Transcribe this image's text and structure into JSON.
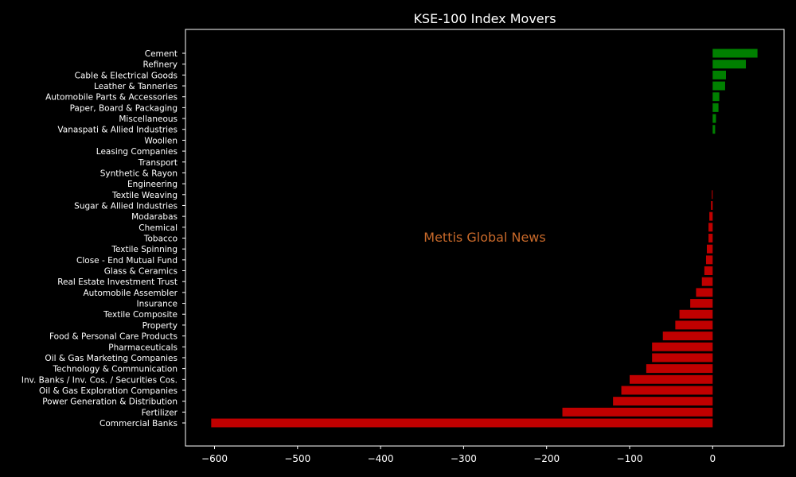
{
  "chart_data": {
    "type": "bar",
    "orientation": "horizontal",
    "title": "KSE-100 Index Movers",
    "xlabel": "",
    "ylabel": "",
    "xlim": [
      -635,
      86
    ],
    "xticks": [
      -600,
      -500,
      -400,
      -300,
      -200,
      -100,
      0
    ],
    "grid": false,
    "watermark": "Mettis Global News",
    "colors": {
      "positive": "#008000",
      "negative": "#c00000",
      "background": "#000000",
      "foreground": "#ffffff"
    },
    "categories": [
      "Cement",
      "Refinery",
      "Cable & Electrical Goods",
      "Leather & Tanneries",
      "Automobile Parts & Accessories",
      "Paper, Board & Packaging",
      "Miscellaneous",
      "Vanaspati & Allied Industries",
      "Woollen",
      "Leasing Companies",
      "Transport",
      "Synthetic & Rayon",
      "Engineering",
      "Textile Weaving",
      "Sugar & Allied Industries",
      "Modarabas",
      "Chemical",
      "Tobacco",
      "Textile Spinning",
      "Close - End Mutual Fund",
      "Glass & Ceramics",
      "Real Estate Investment Trust",
      "Automobile Assembler",
      "Insurance",
      "Textile Composite",
      "Property",
      "Food & Personal Care Products",
      "Pharmaceuticals",
      "Oil & Gas Marketing Companies",
      "Technology & Communication",
      "Inv. Banks / Inv. Cos. / Securities Cos.",
      "Oil & Gas Exploration Companies",
      "Power Generation & Distribution",
      "Fertilizer",
      "Commercial Banks"
    ],
    "values": [
      54,
      40,
      16,
      15,
      8,
      7,
      4,
      3,
      0,
      0,
      0,
      0,
      0,
      -1,
      -2,
      -4,
      -5,
      -5,
      -7,
      -8,
      -10,
      -13,
      -20,
      -27,
      -40,
      -45,
      -60,
      -73,
      -73,
      -80,
      -100,
      -110,
      -120,
      -181,
      -604
    ]
  }
}
